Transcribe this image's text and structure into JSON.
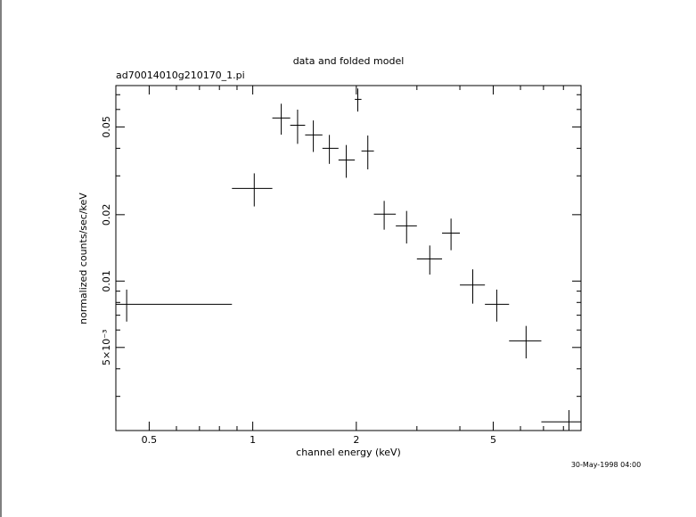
{
  "chart_data": {
    "type": "errorbar",
    "title": "data and folded model",
    "subtitle": "ad70014010g210170_1.pi",
    "x_label": "channel energy (keV)",
    "y_label": "normalized counts/sec/keV",
    "timestamp": "30-May-1998 04:00",
    "xscale": "log",
    "yscale": "log",
    "xlim": [
      0.4,
      9
    ],
    "ylim": [
      0.0021,
      0.077
    ],
    "xticks": [
      0.5,
      1,
      2,
      5
    ],
    "xminorticks": [
      0.4,
      0.6,
      0.7,
      0.8,
      0.9,
      3,
      4,
      6,
      7,
      8,
      9
    ],
    "yticks": [
      0.05,
      0.02,
      0.01,
      {
        "value": 0.005,
        "label": "5×10⁻³"
      }
    ],
    "yminorticks": [
      0.003,
      0.004,
      0.006,
      0.007,
      0.008,
      0.009,
      0.03,
      0.04,
      0.06,
      0.07
    ],
    "color": "#000000",
    "x": [
      0.43,
      1.01,
      1.21,
      1.35,
      1.5,
      1.67,
      1.87,
      2.02,
      2.16,
      2.41,
      2.8,
      3.27,
      3.77,
      4.36,
      5.12,
      6.23,
      8.3
    ],
    "x_low": [
      0.4,
      0.87,
      1.14,
      1.285,
      1.42,
      1.594,
      1.775,
      1.98,
      2.07,
      2.25,
      2.605,
      3.0,
      3.55,
      4.0,
      4.73,
      5.56,
      6.9
    ],
    "x_high": [
      0.87,
      1.14,
      1.285,
      1.42,
      1.594,
      1.775,
      1.98,
      2.07,
      2.25,
      2.605,
      3.0,
      3.55,
      4.0,
      4.73,
      5.56,
      6.9,
      9.0
    ],
    "y": [
      0.00785,
      0.0263,
      0.0549,
      0.0509,
      0.046,
      0.04,
      0.0354,
      0.0667,
      0.0389,
      0.0201,
      0.0178,
      0.0126,
      0.0165,
      0.0096,
      0.00785,
      0.00536,
      0.0023
    ],
    "yerr": [
      0.0013,
      0.0045,
      0.0088,
      0.009,
      0.0075,
      0.006,
      0.006,
      0.008,
      0.0068,
      0.003,
      0.003,
      0.0019,
      0.0027,
      0.0017,
      0.0013,
      0.0009,
      0.0003
    ]
  }
}
